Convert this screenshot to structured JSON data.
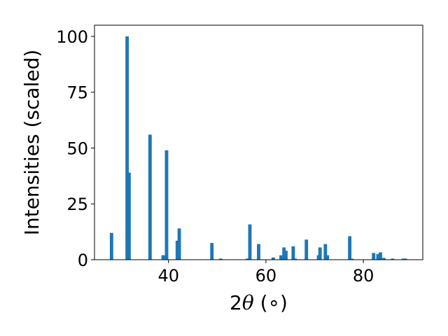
{
  "chart_data": {
    "type": "bar",
    "xlabel_prefix": "2",
    "xlabel_symbol": "θ",
    "xlabel_suffix": " (∘)",
    "ylabel": "Intensities (scaled)",
    "xlim": [
      24.8,
      92.2
    ],
    "ylim": [
      0,
      105
    ],
    "xticks": [
      40,
      60,
      80
    ],
    "yticks": [
      0,
      25,
      50,
      75,
      100
    ],
    "grid": false,
    "bar_color": "#1f77b4",
    "bar_width": 0.7,
    "x": [
      28.3,
      31.5,
      31.9,
      36.2,
      38.9,
      39.6,
      41.8,
      42.2,
      48.9,
      50.7,
      56.2,
      56.7,
      58.5,
      61.5,
      63.1,
      63.7,
      64.1,
      65.6,
      66.0,
      68.3,
      70.8,
      71.1,
      72.2,
      72.6,
      77.2,
      77.6,
      82.1,
      83.0,
      83.5,
      84.2,
      86.0,
      88.2,
      88.6
    ],
    "values": [
      12.0,
      100.0,
      39.0,
      56.0,
      2.0,
      49.0,
      8.5,
      14.0,
      7.5,
      0.5,
      0.5,
      15.8,
      7.0,
      1.0,
      2.0,
      5.5,
      4.0,
      6.0,
      0.5,
      9.0,
      2.0,
      5.5,
      7.0,
      2.0,
      10.5,
      0.5,
      3.0,
      2.5,
      3.3,
      0.8,
      0.5,
      0.5,
      0.5
    ]
  }
}
